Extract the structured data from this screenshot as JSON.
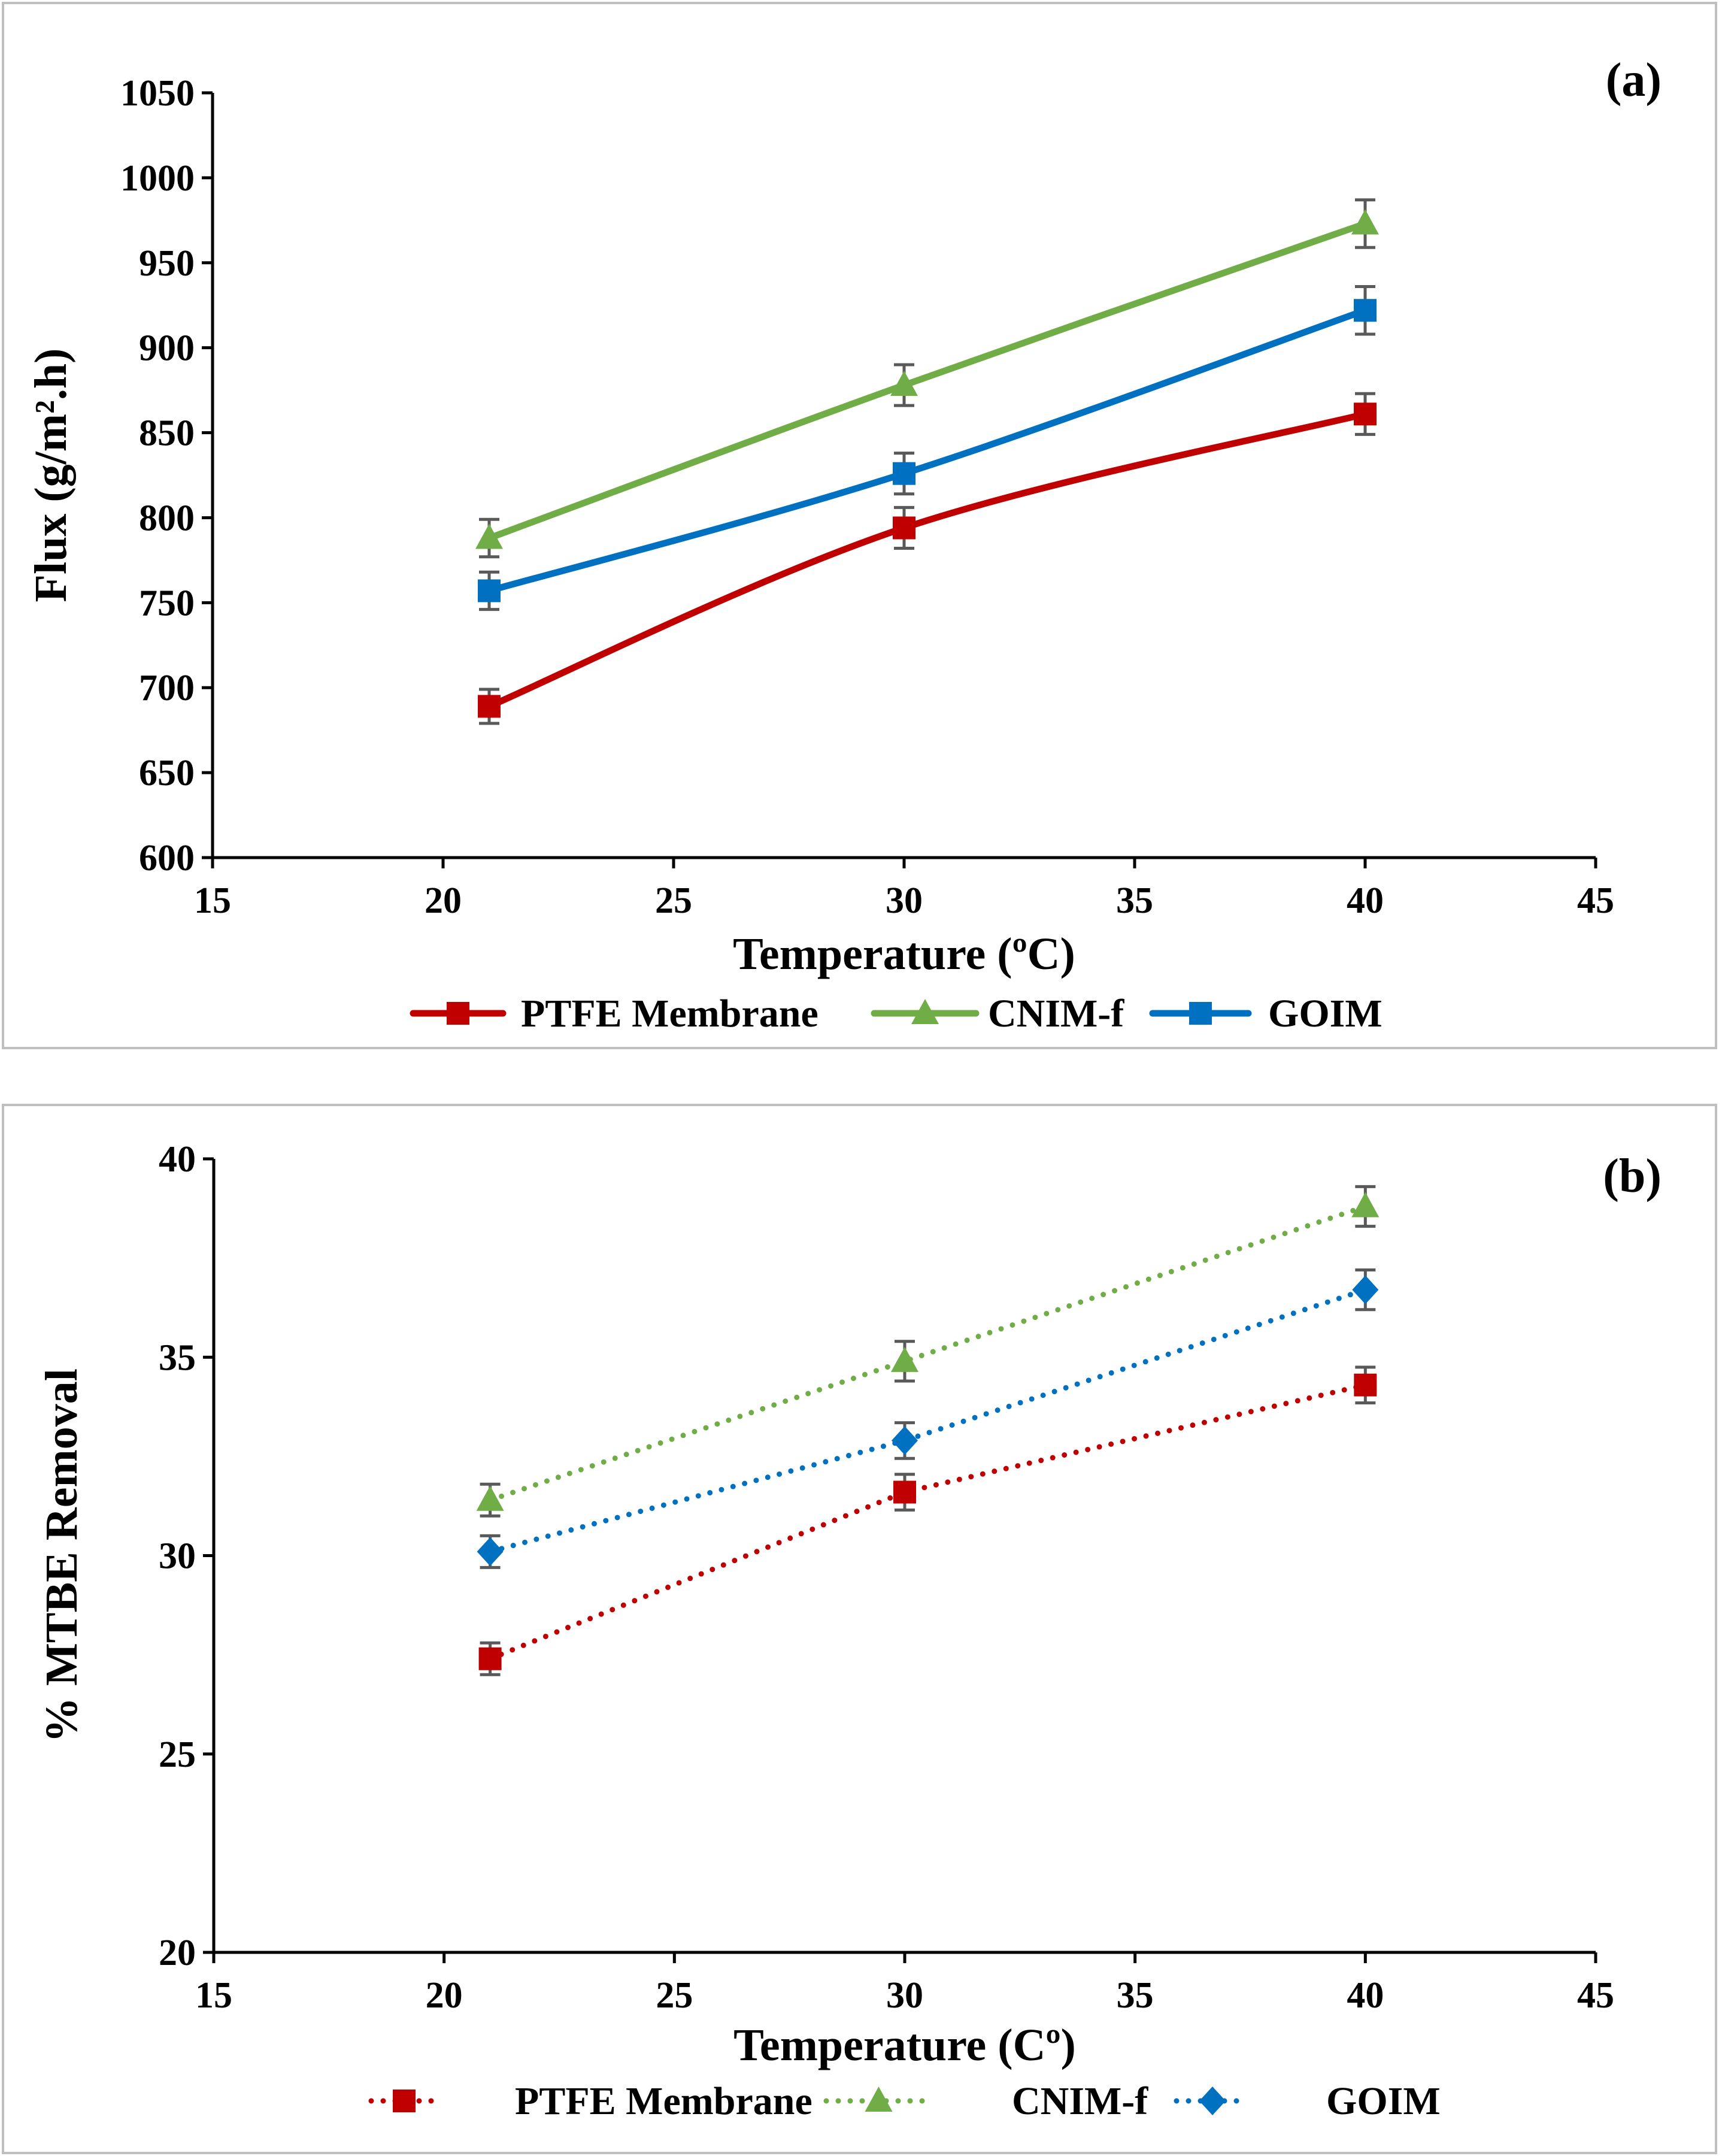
{
  "chart_data": [
    {
      "type": "line",
      "panel_label": "(a)",
      "xlabel": "Temperature (ºC)",
      "ylabel": "Flux (g/m².h)",
      "xlim": [
        15,
        45
      ],
      "ylim": [
        600,
        1050
      ],
      "x_ticks": [
        15,
        20,
        25,
        30,
        35,
        40,
        45
      ],
      "y_ticks": [
        600,
        650,
        700,
        750,
        800,
        850,
        900,
        950,
        1000,
        1050
      ],
      "x_tick_labels": [
        "15",
        "20",
        "25",
        "30",
        "35",
        "40",
        "45"
      ],
      "y_tick_labels": [
        "600",
        "650",
        "700",
        "750",
        "800",
        "850",
        "900",
        "950",
        "1000",
        "1050"
      ],
      "grid": false,
      "legend_position": "bottom",
      "line_style": "solid",
      "series": [
        {
          "name": "PTFE Membrane",
          "color": "#c00000",
          "marker": "square",
          "x": [
            21,
            30,
            40
          ],
          "y": [
            689,
            794,
            861
          ],
          "error": [
            10,
            12,
            12
          ]
        },
        {
          "name": "CNIM-f",
          "color": "#70ad47",
          "marker": "triangle",
          "x": [
            21,
            30,
            40
          ],
          "y": [
            788,
            878,
            973
          ],
          "error": [
            11,
            12,
            14
          ]
        },
        {
          "name": "GOIM",
          "color": "#0070c0",
          "marker": "square",
          "x": [
            21,
            30,
            40
          ],
          "y": [
            757,
            826,
            922
          ],
          "error": [
            11,
            12,
            14
          ]
        }
      ]
    },
    {
      "type": "line",
      "panel_label": "(b)",
      "xlabel": "Temperature (Cº)",
      "ylabel": "% MTBE Removal",
      "xlim": [
        15,
        45
      ],
      "ylim": [
        20,
        40
      ],
      "x_ticks": [
        15,
        20,
        25,
        30,
        35,
        40,
        45
      ],
      "y_ticks": [
        20,
        25,
        30,
        35,
        40
      ],
      "x_tick_labels": [
        "15",
        "20",
        "25",
        "30",
        "35",
        "40",
        "45"
      ],
      "y_tick_labels": [
        "20",
        "25",
        "30",
        "35",
        "40"
      ],
      "grid": false,
      "legend_position": "bottom",
      "line_style": "dotted",
      "series": [
        {
          "name": "PTFE Membrane",
          "color": "#c00000",
          "marker": "square",
          "x": [
            21,
            30,
            40
          ],
          "y": [
            27.4,
            31.6,
            34.3
          ],
          "error": [
            0.4,
            0.45,
            0.45
          ]
        },
        {
          "name": "CNIM-f",
          "color": "#70ad47",
          "marker": "triangle",
          "x": [
            21,
            30,
            40
          ],
          "y": [
            31.4,
            34.9,
            38.8
          ],
          "error": [
            0.4,
            0.5,
            0.5
          ]
        },
        {
          "name": "GOIM",
          "color": "#0070c0",
          "marker": "diamond",
          "x": [
            21,
            30,
            40
          ],
          "y": [
            30.1,
            32.9,
            36.7
          ],
          "error": [
            0.4,
            0.45,
            0.5
          ]
        }
      ]
    }
  ]
}
